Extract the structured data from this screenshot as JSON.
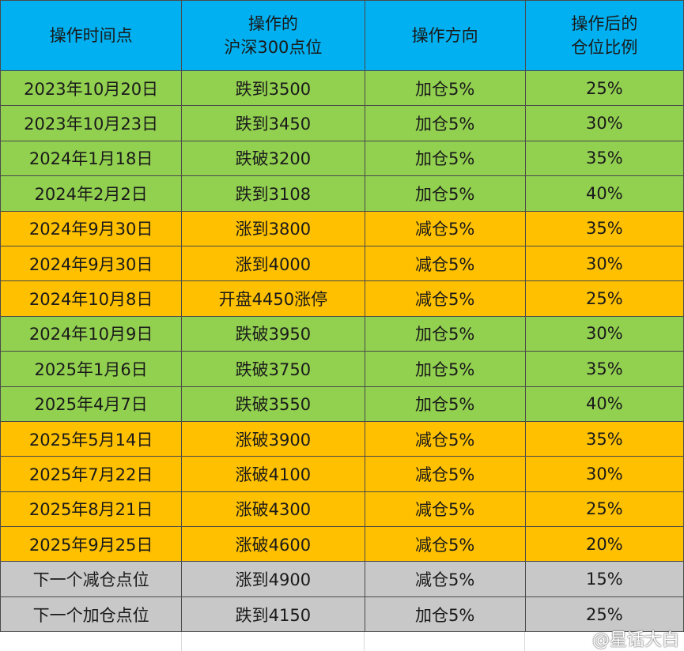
{
  "headers": [
    "操作时间点",
    "操作的\n沪深300点位",
    "操作方向",
    "操作后的\n仓位比例"
  ],
  "rows": [
    {
      "date": "2023年10月20日",
      "level": "跌到3500",
      "action": "加仓5%",
      "position": "25%",
      "type": "green"
    },
    {
      "date": "2023年10月23日",
      "level": "跌到3450",
      "action": "加仓5%",
      "position": "30%",
      "type": "green"
    },
    {
      "date": "2024年1月18日",
      "level": "跌破3200",
      "action": "加仓5%",
      "position": "35%",
      "type": "green"
    },
    {
      "date": "2024年2月2日",
      "level": "跌到3108",
      "action": "加仓5%",
      "position": "40%",
      "type": "green"
    },
    {
      "date": "2024年9月30日",
      "level": "涨到3800",
      "action": "减仓5%",
      "position": "35%",
      "type": "orange"
    },
    {
      "date": "2024年9月30日",
      "level": "涨到4000",
      "action": "减仓5%",
      "position": "30%",
      "type": "orange"
    },
    {
      "date": "2024年10月8日",
      "level": "开盘4450涨停",
      "action": "减仓5%",
      "position": "25%",
      "type": "orange"
    },
    {
      "date": "2024年10月9日",
      "level": "跌破3950",
      "action": "加仓5%",
      "position": "30%",
      "type": "green"
    },
    {
      "date": "2025年1月6日",
      "level": "跌破3750",
      "action": "加仓5%",
      "position": "35%",
      "type": "green"
    },
    {
      "date": "2025年4月7日",
      "level": "跌破3550",
      "action": "加仓5%",
      "position": "40%",
      "type": "green"
    },
    {
      "date": "2025年5月14日",
      "level": "涨破3900",
      "action": "减仓5%",
      "position": "35%",
      "type": "orange"
    },
    {
      "date": "2025年7月22日",
      "level": "涨破4100",
      "action": "减仓5%",
      "position": "30%",
      "type": "orange"
    },
    {
      "date": "2025年8月21日",
      "level": "涨破4300",
      "action": "减仓5%",
      "position": "25%",
      "type": "orange"
    },
    {
      "date": "2025年9月25日",
      "level": "涨破4600",
      "action": "减仓5%",
      "position": "20%",
      "type": "orange"
    },
    {
      "date": "下一个减仓点位",
      "level": "涨到4900",
      "action": "减仓5%",
      "position": "15%",
      "type": "gray"
    },
    {
      "date": "下一个加仓点位",
      "level": "跌到4150",
      "action": "加仓5%",
      "position": "25%",
      "type": "gray"
    }
  ],
  "colors": {
    "header": "#00b0f0",
    "green": "#92d050",
    "orange": "#ffc000",
    "gray": "#c8c8c8"
  },
  "watermark": {
    "icon": "weibo-icon",
    "text": "@星话大白"
  }
}
